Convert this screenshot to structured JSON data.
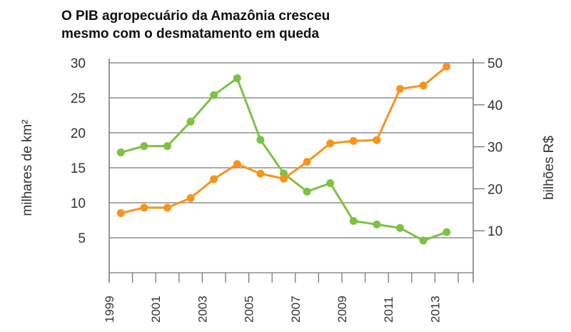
{
  "chart_data": {
    "type": "line",
    "title": "O PIB agropecuário da Amazônia cresceu mesmo com o desmatamento em queda",
    "title_lines": [
      "O PIB agropecuário da Amazônia cresceu",
      "mesmo com o desmatamento em queda"
    ],
    "ylabel_left": "milhares de km²",
    "ylabel_right": "bilhões R$",
    "ylim_left": [
      0,
      30
    ],
    "ylim_right": [
      0,
      50
    ],
    "yticks_left": [
      5,
      10,
      15,
      20,
      25,
      30
    ],
    "yticks_right": [
      10,
      20,
      30,
      40,
      50
    ],
    "xticks": [
      "1999",
      "2001",
      "2003",
      "2005",
      "2007",
      "2009",
      "2011",
      "2013"
    ],
    "x": [
      1999,
      2000,
      2001,
      2002,
      2003,
      2004,
      2005,
      2006,
      2007,
      2008,
      2009,
      2010,
      2011,
      2012,
      2013
    ],
    "grid": true,
    "series": [
      {
        "axis": "left",
        "color": "#7dc242",
        "values": [
          17.2,
          18.1,
          18.1,
          21.6,
          25.4,
          27.8,
          19.0,
          14.2,
          11.6,
          12.8,
          7.4,
          6.9,
          6.4,
          4.6,
          5.8
        ]
      },
      {
        "axis": "right",
        "color": "#f7941d",
        "values": [
          14.2,
          15.5,
          15.5,
          17.8,
          22.3,
          25.9,
          23.6,
          22.4,
          26.4,
          30.8,
          31.4,
          31.6,
          43.8,
          44.6,
          49.1
        ]
      }
    ]
  }
}
